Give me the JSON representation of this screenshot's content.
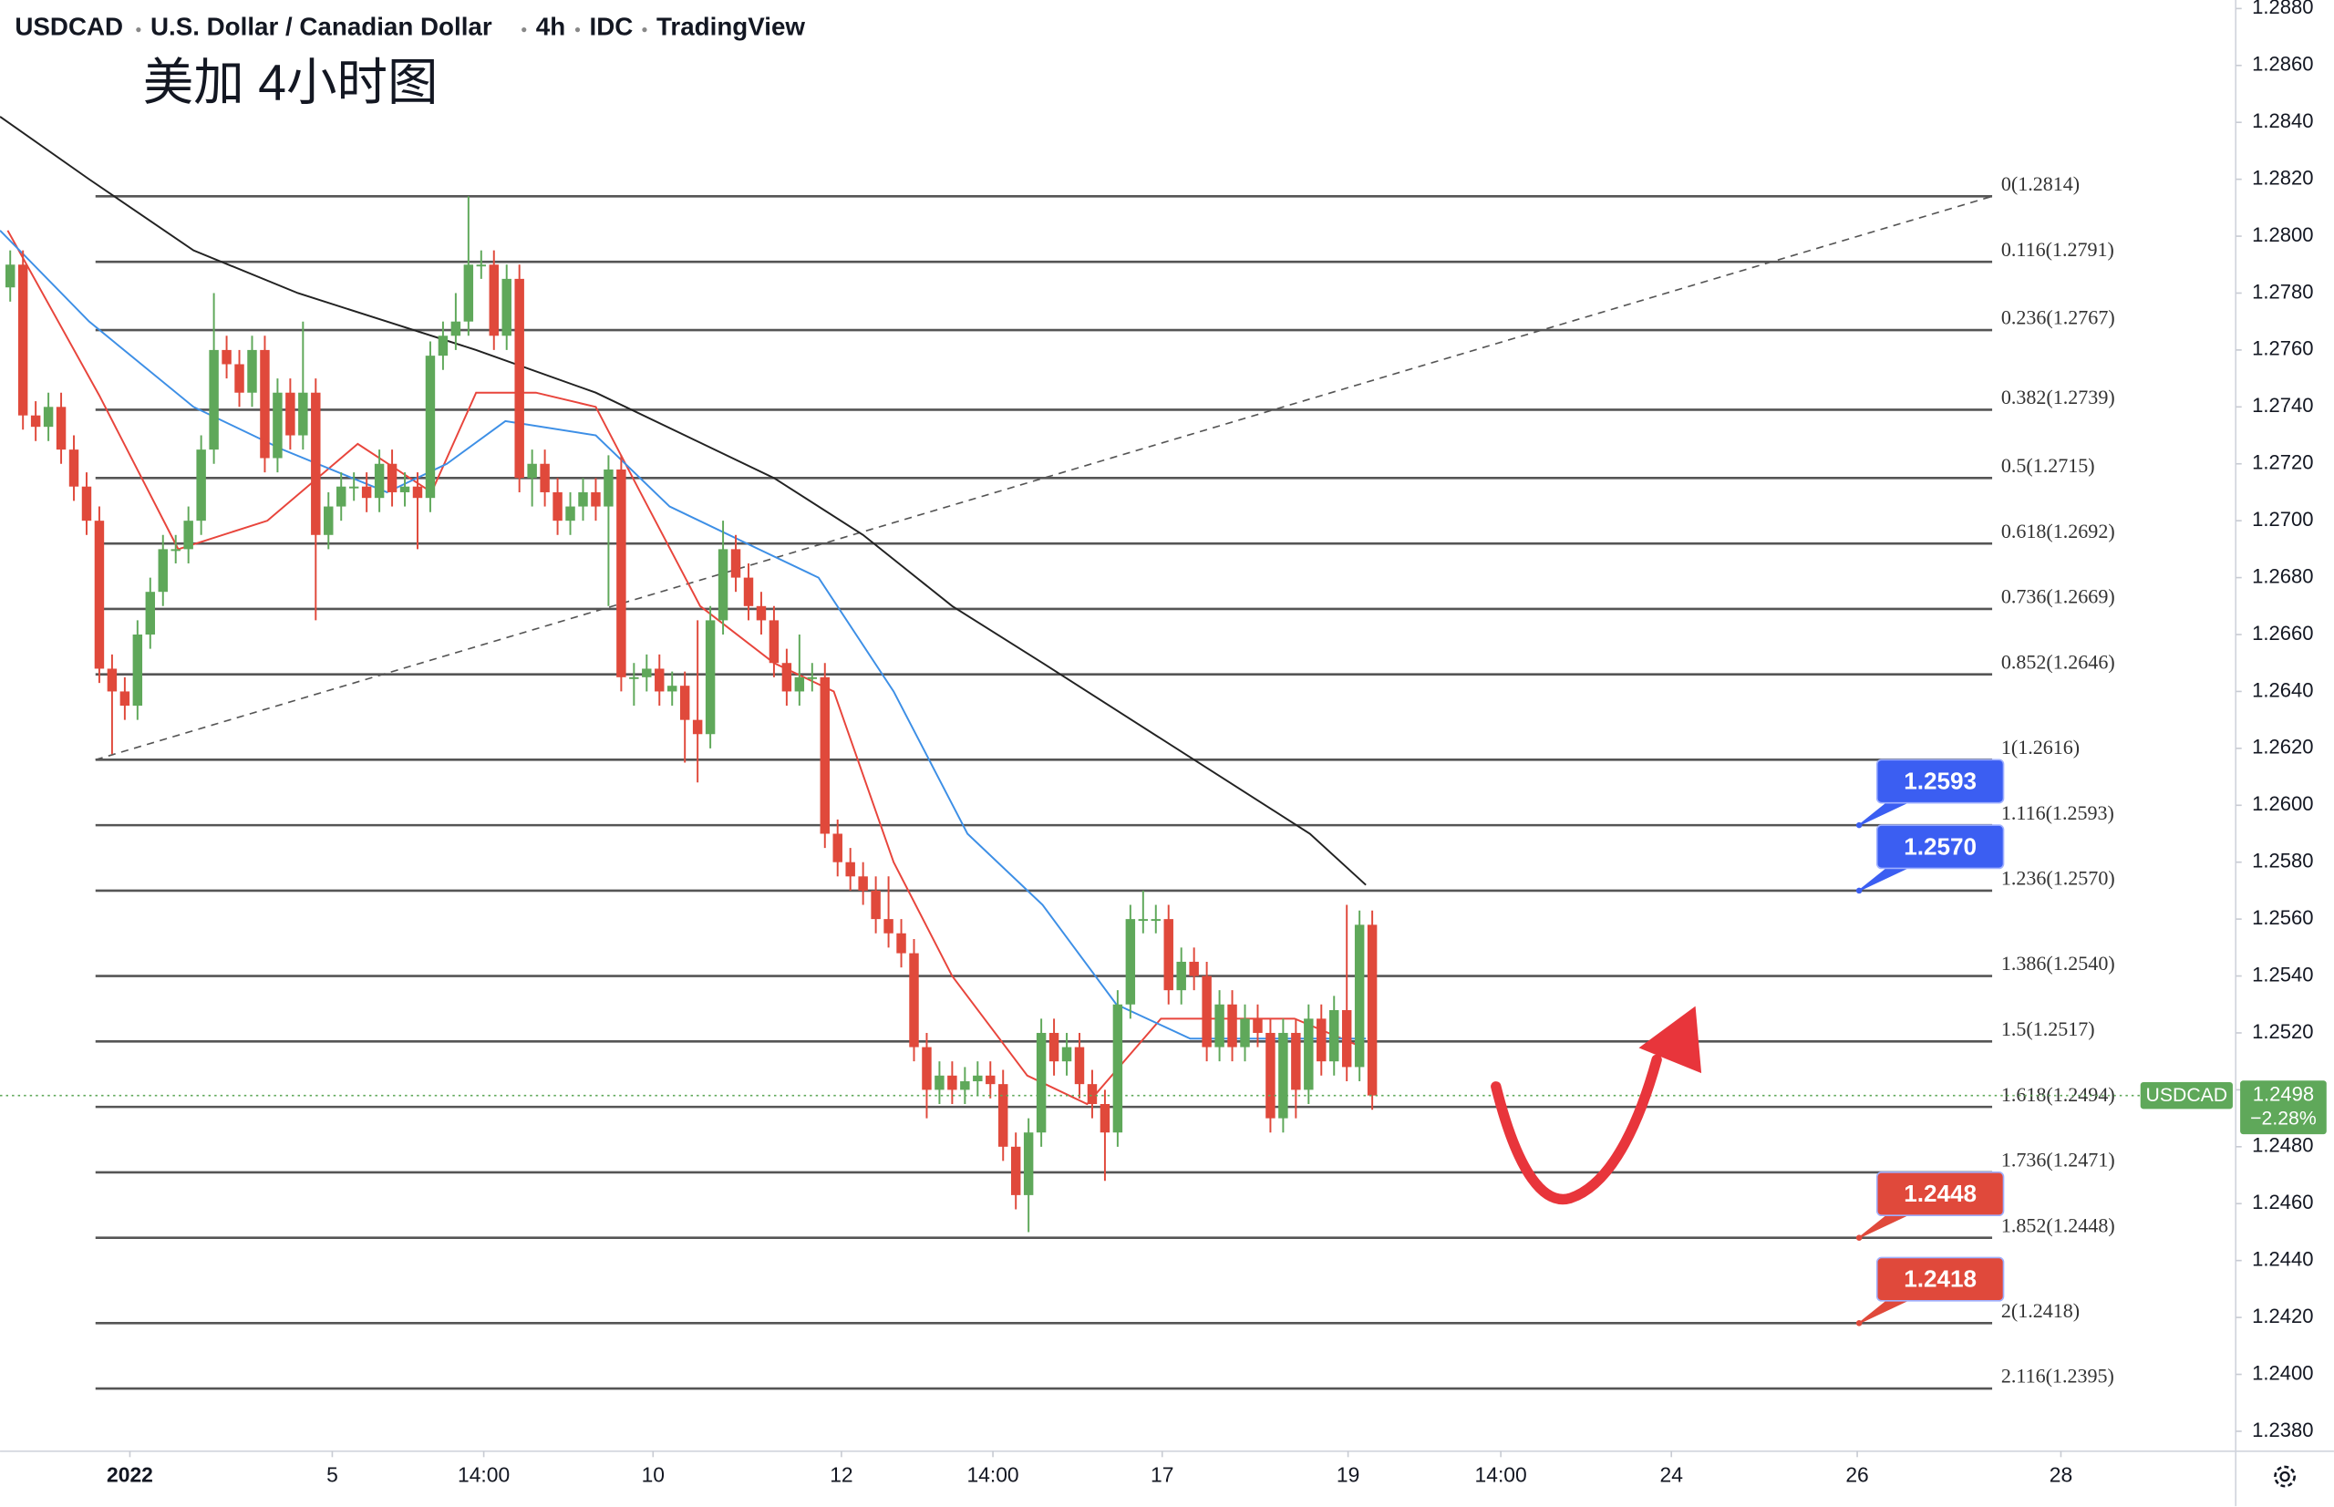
{
  "chart_data": {
    "type": "candlestick",
    "header": [
      "USDCAD",
      "U.S. Dollar / Canadian Dollar",
      "4h",
      "IDC",
      "TradingView"
    ],
    "annotation": "美加 4小时图",
    "up_color": "#5fa85a",
    "down_color": "#e0493b",
    "open": [
      1.2782,
      1.279,
      1.2737,
      1.2733,
      1.274,
      1.2725,
      1.2712,
      1.27,
      1.2648,
      1.264,
      1.2635,
      1.266,
      1.2675,
      1.269,
      1.269,
      1.27,
      1.2725,
      1.276,
      1.2755,
      1.2745,
      1.276,
      1.2722,
      1.2745,
      1.273,
      1.2745,
      1.2695,
      1.2705,
      1.2712,
      1.2712,
      1.2708,
      1.272,
      1.271,
      1.2712,
      1.2708,
      1.2758,
      1.2765,
      1.277,
      1.279,
      1.279,
      1.2765,
      1.2785,
      1.2715,
      1.272,
      1.271,
      1.27,
      1.2705,
      1.271,
      1.2705,
      1.2718,
      1.2645,
      1.2645,
      1.2648,
      1.264,
      1.2642,
      1.263,
      1.2625,
      1.2665,
      1.269,
      1.268,
      1.267,
      1.2665,
      1.265,
      1.264,
      1.2645,
      1.2645,
      1.259,
      1.258,
      1.2575,
      1.257,
      1.256,
      1.2555,
      1.2548,
      1.2515,
      1.25,
      1.2505,
      1.25,
      1.2503,
      1.2505,
      1.2502,
      1.248,
      1.2463,
      1.2485,
      1.252,
      1.251,
      1.2515,
      1.2502,
      1.2495,
      1.2485,
      1.253,
      1.256,
      1.256,
      1.256,
      1.2535,
      1.2545,
      1.254,
      1.2515,
      1.253,
      1.2515,
      1.2525,
      1.252,
      1.249,
      1.252,
      1.25,
      1.2525,
      1.251,
      1.2528,
      1.2508,
      1.2558
    ],
    "high": [
      1.2795,
      1.2795,
      1.2742,
      1.2745,
      1.2745,
      1.273,
      1.2717,
      1.2705,
      1.2653,
      1.2645,
      1.2665,
      1.268,
      1.2695,
      1.2695,
      1.2705,
      1.273,
      1.278,
      1.2765,
      1.276,
      1.2765,
      1.2765,
      1.275,
      1.275,
      1.277,
      1.275,
      1.271,
      1.2717,
      1.2717,
      1.2717,
      1.2725,
      1.2725,
      1.2717,
      1.2717,
      1.2763,
      1.277,
      1.278,
      1.2814,
      1.2795,
      1.2795,
      1.279,
      1.279,
      1.2725,
      1.2725,
      1.2715,
      1.271,
      1.2715,
      1.2715,
      1.2723,
      1.2723,
      1.265,
      1.2653,
      1.2653,
      1.2647,
      1.2647,
      1.2665,
      1.267,
      1.27,
      1.2695,
      1.2685,
      1.2675,
      1.267,
      1.2655,
      1.266,
      1.265,
      1.265,
      1.2595,
      1.2585,
      1.258,
      1.2575,
      1.2575,
      1.256,
      1.2553,
      1.252,
      1.251,
      1.251,
      1.2508,
      1.251,
      1.251,
      1.2507,
      1.2485,
      1.249,
      1.2525,
      1.2525,
      1.252,
      1.252,
      1.2507,
      1.25,
      1.2535,
      1.2565,
      1.257,
      1.2565,
      1.2565,
      1.255,
      1.255,
      1.2545,
      1.2535,
      1.2535,
      1.253,
      1.253,
      1.2525,
      1.2525,
      1.2525,
      1.253,
      1.253,
      1.2533,
      1.2565,
      1.2563,
      1.2563
    ],
    "low": [
      1.2777,
      1.2732,
      1.2728,
      1.2728,
      1.272,
      1.2707,
      1.2695,
      1.2643,
      1.2618,
      1.263,
      1.263,
      1.2655,
      1.267,
      1.2685,
      1.2685,
      1.2695,
      1.272,
      1.275,
      1.274,
      1.274,
      1.2717,
      1.2717,
      1.2725,
      1.2725,
      1.2665,
      1.269,
      1.27,
      1.2707,
      1.2703,
      1.2703,
      1.2705,
      1.2705,
      1.269,
      1.2703,
      1.2753,
      1.276,
      1.2765,
      1.2785,
      1.276,
      1.276,
      1.271,
      1.2705,
      1.2705,
      1.2695,
      1.2695,
      1.27,
      1.27,
      1.267,
      1.264,
      1.2635,
      1.264,
      1.2635,
      1.2635,
      1.2615,
      1.2608,
      1.262,
      1.266,
      1.2675,
      1.2665,
      1.266,
      1.2645,
      1.2635,
      1.2635,
      1.264,
      1.2585,
      1.2575,
      1.257,
      1.2565,
      1.2555,
      1.255,
      1.2543,
      1.251,
      1.249,
      1.2495,
      1.2495,
      1.2495,
      1.2498,
      1.2497,
      1.2475,
      1.2458,
      1.245,
      1.248,
      1.2505,
      1.2505,
      1.2497,
      1.249,
      1.2468,
      1.248,
      1.2525,
      1.2555,
      1.2555,
      1.253,
      1.253,
      1.2535,
      1.251,
      1.251,
      1.251,
      1.251,
      1.2515,
      1.2485,
      1.2485,
      1.249,
      1.2495,
      1.2505,
      1.2505,
      1.2503,
      1.2503,
      1.2493
    ],
    "close": [
      1.279,
      1.2737,
      1.2733,
      1.274,
      1.2725,
      1.2712,
      1.27,
      1.2648,
      1.264,
      1.2635,
      1.266,
      1.2675,
      1.269,
      1.269,
      1.27,
      1.2725,
      1.276,
      1.2755,
      1.2745,
      1.276,
      1.2722,
      1.2745,
      1.273,
      1.2745,
      1.2695,
      1.2705,
      1.2712,
      1.2712,
      1.2708,
      1.272,
      1.271,
      1.2712,
      1.2708,
      1.2758,
      1.2765,
      1.277,
      1.279,
      1.279,
      1.2765,
      1.2785,
      1.2715,
      1.272,
      1.271,
      1.27,
      1.2705,
      1.271,
      1.2705,
      1.2718,
      1.2645,
      1.2645,
      1.2648,
      1.264,
      1.2642,
      1.263,
      1.2625,
      1.2665,
      1.269,
      1.268,
      1.267,
      1.2665,
      1.265,
      1.264,
      1.2645,
      1.2645,
      1.259,
      1.258,
      1.2575,
      1.257,
      1.256,
      1.2555,
      1.2548,
      1.2515,
      1.25,
      1.2505,
      1.25,
      1.2503,
      1.2505,
      1.2502,
      1.248,
      1.2463,
      1.2485,
      1.252,
      1.251,
      1.2515,
      1.2502,
      1.2495,
      1.2485,
      1.253,
      1.256,
      1.256,
      1.256,
      1.2535,
      1.2545,
      1.254,
      1.2515,
      1.253,
      1.2515,
      1.2525,
      1.252,
      1.249,
      1.252,
      1.25,
      1.2525,
      1.251,
      1.2528,
      1.2508,
      1.2558,
      1.2498
    ],
    "series": [
      {
        "color": "#e8453c",
        "x": [
          -0.2,
          7,
          13.2,
          20.2,
          27.3,
          33.1,
          36.6,
          41.3,
          46,
          49.5,
          54.2,
          60,
          64.7,
          69.4,
          74,
          79.9,
          84.6,
          90.4,
          96.3,
          100.9,
          106.2
        ],
        "values": [
          1.2802,
          1.2744,
          1.269,
          1.27,
          1.2727,
          1.271,
          1.2745,
          1.2745,
          1.274,
          1.271,
          1.267,
          1.265,
          1.264,
          1.258,
          1.254,
          1.2505,
          1.2495,
          1.2525,
          1.2525,
          1.2525,
          1.2515
        ]
      },
      {
        "color": "#3d8fe6",
        "x": [
          -0.8,
          6.2,
          14.4,
          21.4,
          29.6,
          34.3,
          38.9,
          46,
          51.8,
          58.8,
          63.5,
          69.4,
          75.2,
          81.1,
          86.9,
          92.7,
          98.6,
          106.5
        ],
        "values": [
          1.2802,
          1.277,
          1.274,
          1.2725,
          1.271,
          1.272,
          1.2735,
          1.273,
          1.2705,
          1.269,
          1.268,
          1.264,
          1.259,
          1.2565,
          1.253,
          1.2518,
          1.2518,
          1.2518
        ]
      },
      {
        "color": "#222222",
        "x": [
          -0.8,
          6.2,
          14.4,
          22.6,
          29.6,
          36.6,
          46,
          53,
          60,
          67,
          74,
          81.1,
          88.1,
          95.1,
          102.1,
          106.5
        ],
        "values": [
          1.2842,
          1.282,
          1.2795,
          1.278,
          1.277,
          1.276,
          1.2745,
          1.273,
          1.2715,
          1.2695,
          1.267,
          1.265,
          1.263,
          1.261,
          1.259,
          1.2572
        ]
      }
    ],
    "trendline": {
      "x": [
        6.7,
        155.7
      ],
      "values": [
        1.2616,
        1.2814
      ]
    },
    "fib_levels": [
      {
        "value": 1.2814,
        "label": "0(1.2814)"
      },
      {
        "value": 1.2791,
        "label": "0.116(1.2791)"
      },
      {
        "value": 1.2767,
        "label": "0.236(1.2767)"
      },
      {
        "value": 1.2739,
        "label": "0.382(1.2739)"
      },
      {
        "value": 1.2715,
        "label": "0.5(1.2715)"
      },
      {
        "value": 1.2692,
        "label": "0.618(1.2692)"
      },
      {
        "value": 1.2669,
        "label": "0.736(1.2669)"
      },
      {
        "value": 1.2646,
        "label": "0.852(1.2646)"
      },
      {
        "value": 1.2616,
        "label": "1(1.2616)"
      },
      {
        "value": 1.2593,
        "label": "1.116(1.2593)"
      },
      {
        "value": 1.257,
        "label": "1.236(1.2570)"
      },
      {
        "value": 1.254,
        "label": "1.386(1.2540)"
      },
      {
        "value": 1.2517,
        "label": "1.5(1.2517)"
      },
      {
        "value": 1.2494,
        "label": "1.618(1.2494)"
      },
      {
        "value": 1.2471,
        "label": "1.736(1.2471)"
      },
      {
        "value": 1.2448,
        "label": "1.852(1.2448)"
      },
      {
        "value": 1.2418,
        "label": "2(1.2418)"
      },
      {
        "value": 1.2395,
        "label": "2.116(1.2395)"
      }
    ],
    "callouts": [
      {
        "value": 1.2593,
        "label": "1.2593",
        "color": "#3b5ef2"
      },
      {
        "value": 1.257,
        "label": "1.2570",
        "color": "#3b5ef2"
      },
      {
        "value": 1.2448,
        "label": "1.2448",
        "color": "#e0493b"
      },
      {
        "value": 1.2418,
        "label": "1.2418",
        "color": "#e0493b"
      }
    ],
    "last_price": {
      "symbol": "USDCAD",
      "value": 1.2498,
      "label": "1.2498",
      "change": {
        "value": -2.28,
        "label": "−2.28%"
      },
      "color": "#5fa85a"
    },
    "xlim": [
      -0.8,
      174.6
    ],
    "xticks": [
      {
        "value": 9.4,
        "label": "2022"
      },
      {
        "value": 25.3,
        "label": "5"
      },
      {
        "value": 37.2,
        "label": "14:00"
      },
      {
        "value": 50.5,
        "label": "10"
      },
      {
        "value": 65.3,
        "label": "12"
      },
      {
        "value": 77.2,
        "label": "14:00"
      },
      {
        "value": 90.5,
        "label": "17"
      },
      {
        "value": 105.1,
        "label": "19"
      },
      {
        "value": 117.1,
        "label": "14:00"
      },
      {
        "value": 130.5,
        "label": "24"
      },
      {
        "value": 145.1,
        "label": "26"
      },
      {
        "value": 161.1,
        "label": "28"
      }
    ],
    "ylim": [
      1.2373,
      1.2883
    ],
    "yticks": [
      {
        "value": 1.288,
        "label": "1.2880"
      },
      {
        "value": 1.286,
        "label": "1.2860"
      },
      {
        "value": 1.284,
        "label": "1.2840"
      },
      {
        "value": 1.282,
        "label": "1.2820"
      },
      {
        "value": 1.28,
        "label": "1.2800"
      },
      {
        "value": 1.278,
        "label": "1.2780"
      },
      {
        "value": 1.276,
        "label": "1.2760"
      },
      {
        "value": 1.274,
        "label": "1.2740"
      },
      {
        "value": 1.272,
        "label": "1.2720"
      },
      {
        "value": 1.27,
        "label": "1.2700"
      },
      {
        "value": 1.268,
        "label": "1.2680"
      },
      {
        "value": 1.266,
        "label": "1.2660"
      },
      {
        "value": 1.264,
        "label": "1.2640"
      },
      {
        "value": 1.262,
        "label": "1.2620"
      },
      {
        "value": 1.26,
        "label": "1.2600"
      },
      {
        "value": 1.258,
        "label": "1.2580"
      },
      {
        "value": 1.256,
        "label": "1.2560"
      },
      {
        "value": 1.254,
        "label": "1.2540"
      },
      {
        "value": 1.252,
        "label": "1.2520"
      },
      {
        "value": 1.25,
        "label": "1.2500"
      },
      {
        "value": 1.248,
        "label": "1.2480"
      },
      {
        "value": 1.246,
        "label": "1.2460"
      },
      {
        "value": 1.244,
        "label": "1.2440"
      },
      {
        "value": 1.242,
        "label": "1.2420"
      },
      {
        "value": 1.24,
        "label": "1.2400"
      },
      {
        "value": 1.238,
        "label": "1.2380"
      }
    ]
  }
}
